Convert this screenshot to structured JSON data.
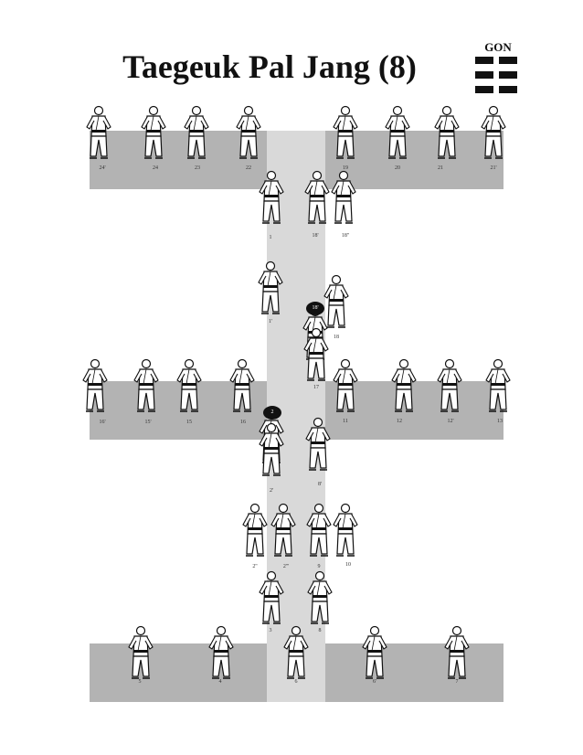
{
  "title": "Taegeuk Pal Jang (8)",
  "trigram": {
    "name": "GON",
    "lines": [
      "broken",
      "broken",
      "broken"
    ]
  },
  "colors": {
    "band": "#b3b3b3",
    "lane": "#d9d9d9",
    "ink": "#111111"
  },
  "step_labels": [
    "24'",
    "24",
    "23",
    "22",
    "19",
    "20",
    "21",
    "21'",
    "1",
    "18'",
    "18''",
    "1'",
    "18'",
    "18",
    "17",
    "16'",
    "15'",
    "15",
    "16",
    "2",
    "11",
    "12",
    "12'",
    "13",
    "2'",
    "8'",
    "2''",
    "2'''",
    "9",
    "10",
    "3",
    "8",
    "5",
    "4",
    "6",
    "6'",
    "7"
  ]
}
